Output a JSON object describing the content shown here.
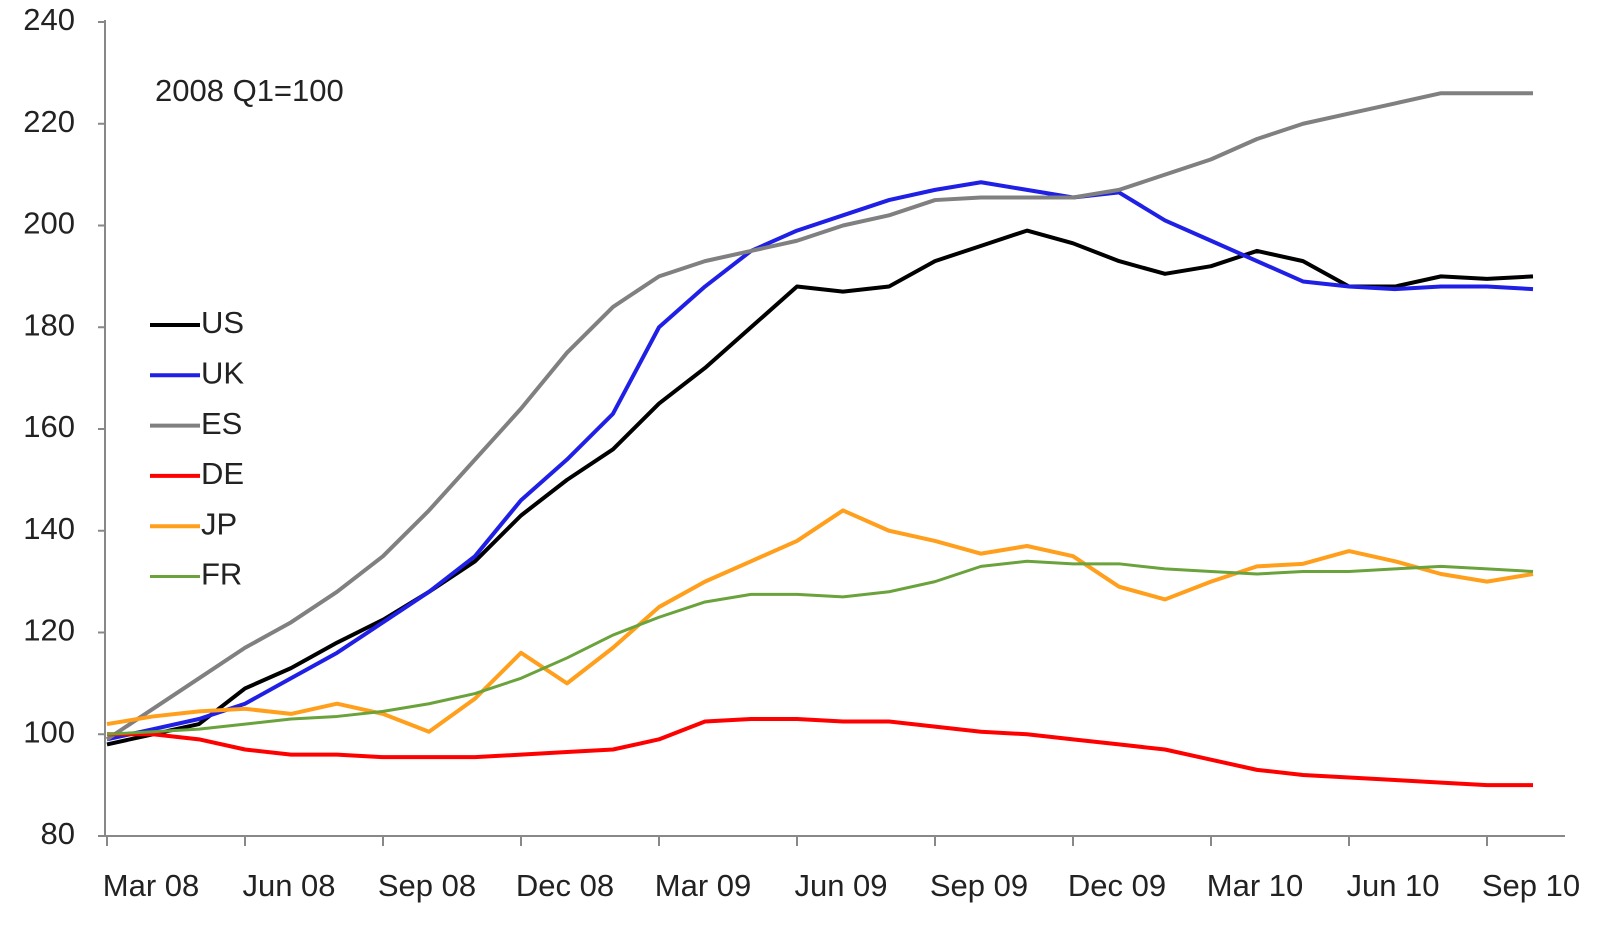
{
  "chart_data": {
    "type": "line",
    "annotation": "2008 Q1=100",
    "categories": [
      "Mar 08",
      null,
      null,
      "Jun 08",
      null,
      null,
      "Sep 08",
      null,
      null,
      "Dec 08",
      null,
      null,
      "Mar 09",
      null,
      null,
      "Jun 09",
      null,
      null,
      "Sep 09",
      null,
      null,
      "Dec 09",
      null,
      null,
      "Mar 10",
      null,
      null,
      "Jun 10",
      null,
      null,
      "Sep 10",
      null
    ],
    "ylim": [
      80,
      240
    ],
    "yticks": [
      80,
      100,
      120,
      140,
      160,
      180,
      200,
      220,
      240
    ],
    "legend": "left",
    "series": [
      {
        "name": "US",
        "color": "#000000",
        "width": 4,
        "values": [
          98,
          100,
          102,
          109,
          113,
          118,
          122.5,
          128,
          134,
          143,
          150,
          156,
          165,
          172,
          180,
          188,
          187,
          188,
          193,
          196,
          199,
          196.5,
          193,
          190.5,
          192,
          195,
          193,
          188,
          188,
          190,
          189.5,
          190
        ]
      },
      {
        "name": "UK",
        "color": "#1f1fe6",
        "width": 4,
        "values": [
          99,
          101,
          103,
          106,
          111,
          116,
          122,
          128,
          135,
          146,
          154,
          163,
          180,
          188,
          195,
          199,
          202,
          205,
          207,
          208.5,
          207,
          205.5,
          206.5,
          201,
          197,
          193,
          189,
          188,
          187.5,
          188,
          188,
          187.5
        ]
      },
      {
        "name": "ES",
        "color": "#808080",
        "width": 4,
        "values": [
          99,
          105,
          111,
          117,
          122,
          128,
          135,
          144,
          154,
          164,
          175,
          184,
          190,
          193,
          195,
          197,
          200,
          202,
          205,
          205.5,
          205.5,
          205.5,
          207,
          210,
          213,
          217,
          220,
          222,
          224,
          226,
          226,
          226
        ]
      },
      {
        "name": "DE",
        "color": "#ff0000",
        "width": 4,
        "values": [
          100,
          100,
          99,
          97,
          96,
          96,
          95.5,
          95.5,
          95.5,
          96,
          96.5,
          97,
          99,
          102.5,
          103,
          103,
          102.5,
          102.5,
          101.5,
          100.5,
          100,
          99,
          98,
          97,
          95,
          93,
          92,
          91.5,
          91,
          90.5,
          90,
          90
        ]
      },
      {
        "name": "JP",
        "color": "#ff9f1c",
        "width": 4,
        "values": [
          102,
          103.5,
          104.5,
          105,
          104,
          106,
          104,
          100.5,
          107,
          116,
          110,
          117,
          125,
          130,
          134,
          138,
          144,
          140,
          138,
          135.5,
          137,
          135,
          129,
          126.5,
          130,
          133,
          133.5,
          136,
          134,
          131.5,
          130,
          131.5
        ]
      },
      {
        "name": "FR",
        "color": "#6aa23c",
        "width": 3,
        "values": [
          100,
          100.5,
          101,
          102,
          103,
          103.5,
          104.5,
          106,
          108,
          111,
          115,
          119.5,
          123,
          126,
          127.5,
          127.5,
          127,
          128,
          130,
          133,
          134,
          133.5,
          133.5,
          132.5,
          132,
          131.5,
          132,
          132,
          132.5,
          133,
          132.5,
          132
        ]
      }
    ]
  }
}
